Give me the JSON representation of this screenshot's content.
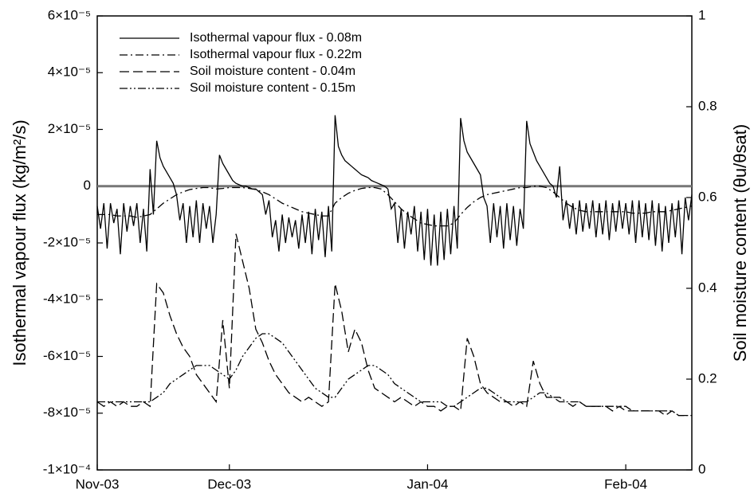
{
  "chart_data": {
    "type": "line",
    "ylabel": "Isothermal vapour flux (kg/m²/s)",
    "y2label": "Soil moisture content (θu/θsat)",
    "xlim": [
      0,
      90
    ],
    "xticks": [
      {
        "value": 0,
        "label": "Nov-03"
      },
      {
        "value": 20,
        "label": "Dec-03"
      },
      {
        "value": 50,
        "label": "Jan-04"
      },
      {
        "value": 80,
        "label": "Feb-04"
      }
    ],
    "ylim": [
      -0.0001,
      6e-05
    ],
    "yticks": [
      {
        "value": -0.0001,
        "label": "-1×10⁻⁴"
      },
      {
        "value": -8e-05,
        "label": "-8×10⁻⁵"
      },
      {
        "value": -6e-05,
        "label": "-6×10⁻⁵"
      },
      {
        "value": -4e-05,
        "label": "-4×10⁻⁵"
      },
      {
        "value": -2e-05,
        "label": "-2×10⁻⁵"
      },
      0,
      {
        "value": 2e-05,
        "label": "2×10⁻⁵"
      },
      {
        "value": 4e-05,
        "label": "4×10⁻⁵"
      },
      {
        "value": 6e-05,
        "label": "6×10⁻⁵"
      }
    ],
    "y2lim": [
      0,
      1
    ],
    "y2ticks": [
      0,
      0.2,
      0.4,
      0.6,
      0.8,
      1
    ],
    "grid": false,
    "legend": "upper left",
    "series": [
      {
        "name": "Isothermal vapour flux - 0.08m",
        "color": "#000000",
        "linestyle": "solid",
        "x": [
          0,
          0.5,
          1,
          1.5,
          2,
          2.5,
          3,
          3.5,
          4,
          4.5,
          5,
          5.5,
          6,
          6.5,
          7,
          7.5,
          8,
          8.5,
          9,
          9.5,
          10,
          10.5,
          11,
          11.5,
          12,
          12.5,
          13,
          13.5,
          14,
          14.5,
          15,
          15.5,
          16,
          16.5,
          17,
          17.5,
          18,
          18.5,
          19,
          19.5,
          20,
          20.5,
          21,
          21.5,
          22,
          22.5,
          23,
          23.5,
          24,
          24.5,
          25,
          25.5,
          26,
          26.5,
          27,
          27.5,
          28,
          28.5,
          29,
          29.5,
          30,
          30.5,
          31,
          31.5,
          32,
          32.5,
          33,
          33.5,
          34,
          34.5,
          35,
          35.5,
          36,
          36.5,
          37,
          37.5,
          38,
          38.5,
          39,
          39.5,
          40,
          40.5,
          41,
          41.5,
          42,
          42.5,
          43,
          43.5,
          44,
          44.5,
          45,
          45.5,
          46,
          46.5,
          47,
          47.5,
          48,
          48.5,
          49,
          49.5,
          50,
          50.5,
          51,
          51.5,
          52,
          52.5,
          53,
          53.5,
          54,
          54.5,
          55,
          55.5,
          56,
          56.5,
          57,
          57.5,
          58,
          58.5,
          59,
          59.5,
          60,
          60.5,
          61,
          61.5,
          62,
          62.5,
          63,
          63.5,
          64,
          64.5,
          65,
          65.5,
          66,
          66.5,
          67,
          67.5,
          68,
          68.5,
          69,
          69.5,
          70,
          70.5,
          71,
          71.5,
          72,
          72.5,
          73,
          73.5,
          74,
          74.5,
          75,
          75.5,
          76,
          76.5,
          77,
          77.5,
          78,
          78.5,
          79,
          79.5,
          80,
          80.5,
          81,
          81.5,
          82,
          82.5,
          83,
          83.5,
          84,
          84.5,
          85,
          85.5,
          86,
          86.5,
          87,
          87.5,
          88,
          88.5,
          89,
          89.5,
          90
        ],
        "values": [
          -7e-06,
          -1.5e-05,
          -6e-06,
          -2.2e-05,
          -6e-06,
          -1.3e-05,
          -8e-06,
          -2.4e-05,
          -6e-06,
          -1.6e-05,
          -7e-06,
          -1.4e-05,
          -6e-06,
          -2e-05,
          -8e-06,
          -2.3e-05,
          6e-06,
          -1e-05,
          1.6e-05,
          1e-05,
          7e-06,
          5e-06,
          3e-06,
          1e-06,
          -3e-06,
          -1.2e-05,
          -6e-06,
          -2e-05,
          -7e-06,
          -1.8e-05,
          -5e-06,
          -2e-05,
          -6e-06,
          -1.5e-05,
          -7e-06,
          -2e-05,
          -1e-05,
          1.1e-05,
          8e-06,
          6e-06,
          4e-06,
          2e-06,
          1e-06,
          5e-07,
          0,
          0,
          -5e-07,
          -1e-06,
          -1e-06,
          -2e-06,
          -3e-06,
          -1e-05,
          -5e-06,
          -1.8e-05,
          -1.2e-05,
          -2.3e-05,
          -1e-05,
          -2e-05,
          -1.1e-05,
          -1.8e-05,
          -1.2e-05,
          -2.2e-05,
          -1e-05,
          -2e-05,
          -9e-06,
          -2.4e-05,
          -8e-06,
          -1.9e-05,
          -9e-06,
          -2.5e-05,
          -7e-06,
          -2.3e-05,
          2.5e-05,
          1.4e-05,
          1.1e-05,
          9e-06,
          8e-06,
          7e-06,
          6e-06,
          5e-06,
          4e-06,
          3.5e-06,
          3e-06,
          2e-06,
          1.5e-06,
          1e-06,
          5e-07,
          0,
          -1e-06,
          -8e-06,
          -6e-06,
          -2e-05,
          -8e-06,
          -2.2e-05,
          -9e-06,
          -1.7e-05,
          -7e-06,
          -2.3e-05,
          -9e-06,
          -2.6e-05,
          -8e-06,
          -2.8e-05,
          -1e-05,
          -2.8e-05,
          -9e-06,
          -2.6e-05,
          -8e-06,
          -2.4e-05,
          -7e-06,
          -2.2e-05,
          2.4e-05,
          1.6e-05,
          1.2e-05,
          1e-05,
          8e-06,
          6e-06,
          4e-06,
          -4e-06,
          -7e-06,
          -2e-05,
          -6e-06,
          -1.8e-05,
          -7e-06,
          -2.2e-05,
          -6e-06,
          -1.9e-05,
          -7e-06,
          -2.1e-05,
          -8e-06,
          -1.5e-05,
          2.3e-05,
          1.5e-05,
          1.2e-05,
          9e-06,
          7e-06,
          5e-06,
          3e-06,
          1e-06,
          0,
          -4e-06,
          7e-06,
          -1.2e-05,
          -5e-06,
          -1.5e-05,
          -6e-06,
          -1.7e-05,
          -5e-06,
          -1.6e-05,
          -6e-06,
          -1.5e-05,
          -5e-06,
          -1.8e-05,
          -6e-06,
          -1.7e-05,
          -5e-06,
          -1.9e-05,
          -6e-06,
          -1.6e-05,
          -5e-06,
          -1.5e-05,
          -6e-06,
          -1.7e-05,
          -5e-06,
          -2e-05,
          -5e-06,
          -1.8e-05,
          -6e-06,
          -1.9e-05,
          -5e-06,
          -2.1e-05,
          -6e-06,
          -2.3e-05,
          -7e-06,
          -2e-05,
          -6e-06,
          -1.8e-05,
          -5e-06,
          -2.4e-05,
          -4e-06,
          -1.2e-05,
          -3e-06
        ]
      },
      {
        "name": "Isothermal vapour flux - 0.22m",
        "color": "#000000",
        "linestyle": "dashdot",
        "x": [
          0,
          1,
          2,
          3,
          4,
          5,
          6,
          7,
          8,
          9,
          10,
          11,
          12,
          13,
          14,
          15,
          16,
          17,
          18,
          19,
          20,
          21,
          22,
          23,
          24,
          25,
          26,
          27,
          28,
          29,
          30,
          31,
          32,
          33,
          34,
          35,
          36,
          37,
          38,
          39,
          40,
          41,
          42,
          43,
          44,
          45,
          46,
          47,
          48,
          49,
          50,
          51,
          52,
          53,
          54,
          55,
          56,
          57,
          58,
          59,
          60,
          61,
          62,
          63,
          64,
          65,
          66,
          67,
          68,
          69,
          70,
          71,
          72,
          73,
          74,
          75,
          76,
          77,
          78,
          79,
          80,
          81,
          82,
          83,
          84,
          85,
          86,
          87,
          88,
          89,
          90
        ],
        "values": [
          -1e-05,
          -1e-05,
          -1e-05,
          -1.05e-05,
          -1.05e-05,
          -1.05e-05,
          -1.1e-05,
          -1.05e-05,
          -1e-05,
          -8e-06,
          -6e-06,
          -4.5e-06,
          -3e-06,
          -2e-06,
          -1.2e-06,
          -8e-07,
          -5e-07,
          -5e-07,
          -1e-06,
          -8e-07,
          -5e-07,
          -5e-07,
          -5e-07,
          -8e-07,
          -1.2e-06,
          -2e-06,
          -3e-06,
          -4.5e-06,
          -6e-06,
          -7e-06,
          -8e-06,
          -9e-06,
          -9.5e-06,
          -1e-05,
          -1.05e-05,
          -1.05e-05,
          -6e-06,
          -4e-06,
          -2.5e-06,
          -1.5e-06,
          -8e-07,
          -5e-07,
          -5e-07,
          -1e-06,
          -3e-06,
          -5.5e-06,
          -8e-06,
          -1e-05,
          -1.15e-05,
          -1.3e-05,
          -1.35e-05,
          -1.4e-05,
          -1.4e-05,
          -1.4e-05,
          -1.3e-05,
          -1e-05,
          -7.5e-06,
          -5.5e-06,
          -4e-06,
          -3e-06,
          -2.5e-06,
          -2e-06,
          -1.5e-06,
          -1e-06,
          -5e-07,
          -5e-07,
          0,
          0,
          -5e-07,
          -2e-06,
          -4e-06,
          -6e-06,
          -7.5e-06,
          -8.5e-06,
          -9e-06,
          -9e-06,
          -9e-06,
          -9e-06,
          -9e-06,
          -9e-06,
          -9e-06,
          -9.5e-06,
          -9.5e-06,
          -9.5e-06,
          -9e-06,
          -9e-06,
          -9e-06,
          -8.5e-06,
          -8e-06,
          -7.5e-06,
          -7e-06
        ]
      },
      {
        "name": "Soil moisture content - 0.04m",
        "color": "#000000",
        "linestyle": "dashed",
        "axis": "y2",
        "x": [
          0,
          1,
          2,
          3,
          4,
          5,
          6,
          7,
          8,
          9,
          10,
          11,
          12,
          13,
          14,
          15,
          16,
          17,
          18,
          19,
          20,
          21,
          22,
          23,
          24,
          25,
          26,
          27,
          28,
          29,
          30,
          31,
          32,
          33,
          34,
          35,
          36,
          37,
          38,
          39,
          40,
          41,
          42,
          43,
          44,
          45,
          46,
          47,
          48,
          49,
          50,
          51,
          52,
          53,
          54,
          55,
          56,
          57,
          58,
          59,
          60,
          61,
          62,
          63,
          64,
          65,
          66,
          67,
          68,
          69,
          70,
          71,
          72,
          73,
          74,
          75,
          76,
          77,
          78,
          79,
          80,
          81,
          82,
          83,
          84,
          85,
          86,
          87,
          88,
          89,
          90
        ],
        "values": [
          0.15,
          0.14,
          0.15,
          0.14,
          0.15,
          0.14,
          0.14,
          0.15,
          0.14,
          0.41,
          0.39,
          0.34,
          0.3,
          0.27,
          0.25,
          0.21,
          0.19,
          0.17,
          0.15,
          0.33,
          0.18,
          0.52,
          0.46,
          0.4,
          0.31,
          0.28,
          0.24,
          0.21,
          0.19,
          0.17,
          0.16,
          0.15,
          0.16,
          0.15,
          0.14,
          0.15,
          0.41,
          0.35,
          0.26,
          0.31,
          0.28,
          0.22,
          0.18,
          0.17,
          0.16,
          0.15,
          0.16,
          0.15,
          0.14,
          0.15,
          0.14,
          0.14,
          0.13,
          0.14,
          0.14,
          0.13,
          0.29,
          0.25,
          0.19,
          0.17,
          0.16,
          0.15,
          0.15,
          0.14,
          0.15,
          0.14,
          0.24,
          0.19,
          0.16,
          0.16,
          0.15,
          0.15,
          0.14,
          0.15,
          0.14,
          0.14,
          0.14,
          0.14,
          0.13,
          0.14,
          0.13,
          0.13,
          0.13,
          0.13,
          0.13,
          0.13,
          0.12,
          0.13,
          0.12,
          0.12,
          0.12
        ]
      },
      {
        "name": "Soil moisture content - 0.15m",
        "color": "#000000",
        "linestyle": "dashdotdot",
        "axis": "y2",
        "x": [
          0,
          1,
          2,
          3,
          4,
          5,
          6,
          7,
          8,
          9,
          10,
          11,
          12,
          13,
          14,
          15,
          16,
          17,
          18,
          19,
          20,
          21,
          22,
          23,
          24,
          25,
          26,
          27,
          28,
          29,
          30,
          31,
          32,
          33,
          34,
          35,
          36,
          37,
          38,
          39,
          40,
          41,
          42,
          43,
          44,
          45,
          46,
          47,
          48,
          49,
          50,
          51,
          52,
          53,
          54,
          55,
          56,
          57,
          58,
          59,
          60,
          61,
          62,
          63,
          64,
          65,
          66,
          67,
          68,
          69,
          70,
          71,
          72,
          73,
          74,
          75,
          76,
          77,
          78,
          79,
          80,
          81,
          82,
          83,
          84,
          85,
          86,
          87,
          88,
          89,
          90
        ],
        "values": [
          0.15,
          0.15,
          0.15,
          0.15,
          0.15,
          0.15,
          0.15,
          0.15,
          0.15,
          0.16,
          0.17,
          0.19,
          0.2,
          0.21,
          0.22,
          0.23,
          0.23,
          0.23,
          0.22,
          0.21,
          0.2,
          0.22,
          0.25,
          0.27,
          0.29,
          0.3,
          0.3,
          0.29,
          0.28,
          0.26,
          0.24,
          0.22,
          0.2,
          0.18,
          0.17,
          0.16,
          0.16,
          0.18,
          0.2,
          0.21,
          0.22,
          0.23,
          0.23,
          0.22,
          0.21,
          0.19,
          0.18,
          0.17,
          0.16,
          0.15,
          0.15,
          0.15,
          0.15,
          0.14,
          0.14,
          0.15,
          0.16,
          0.17,
          0.18,
          0.18,
          0.17,
          0.16,
          0.15,
          0.15,
          0.15,
          0.15,
          0.16,
          0.17,
          0.17,
          0.16,
          0.16,
          0.15,
          0.15,
          0.15,
          0.14,
          0.14,
          0.14,
          0.14,
          0.14,
          0.14,
          0.14,
          0.13,
          0.13,
          0.13,
          0.13,
          0.13,
          0.13,
          0.13,
          0.12,
          0.12,
          0.12
        ]
      }
    ]
  }
}
